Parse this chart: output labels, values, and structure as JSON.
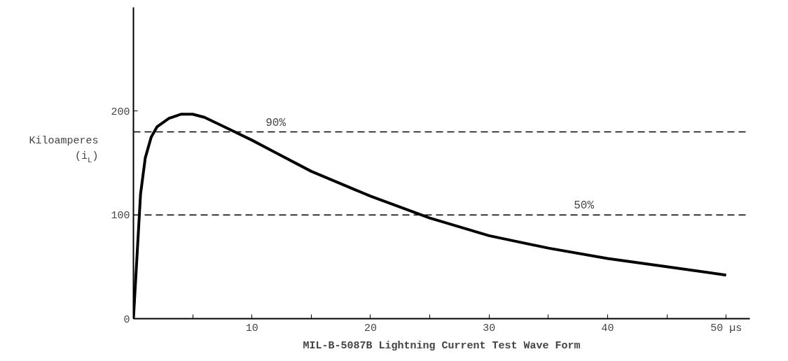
{
  "chart_data": {
    "type": "line",
    "title": "MIL-B-5087B Lightning Current Test Wave Form",
    "ylabel": "Kiloamperes (i$_{L}$)",
    "x": [
      0,
      0.3,
      0.6,
      1,
      1.5,
      2,
      3,
      4,
      5,
      6,
      8,
      10,
      12,
      15,
      20,
      25,
      30,
      35,
      40,
      45,
      50
    ],
    "series": [
      {
        "color": "#000000",
        "values": [
          0,
          60,
          120,
          155,
          175,
          185,
          193,
          197,
          197,
          194,
          183,
          172,
          160,
          142,
          118,
          97,
          80,
          68,
          58,
          50,
          42
        ]
      }
    ],
    "xlim": [
      0,
      52
    ],
    "ylim": [
      0,
      300
    ],
    "xticks": [
      {
        "value": 5,
        "label": null
      },
      10,
      {
        "value": 15,
        "label": null
      },
      20,
      {
        "value": 25,
        "label": null
      },
      30,
      {
        "value": 35,
        "label": null
      },
      40,
      {
        "value": 45,
        "label": null
      },
      {
        "value": 50,
        "label": "50 µs"
      }
    ],
    "yticks": [
      0,
      100,
      200
    ],
    "ref_lines": [
      {
        "axis": "y",
        "value": 180,
        "line_style": "dashed"
      },
      {
        "axis": "y",
        "value": 100,
        "line_style": "dashed"
      }
    ],
    "annotations": [
      {
        "text": "90%",
        "x": 12,
        "y": 180
      },
      {
        "text": "50%",
        "x": 38,
        "y": 100
      }
    ],
    "grid": false,
    "marker": "none",
    "line_style": "solid"
  }
}
